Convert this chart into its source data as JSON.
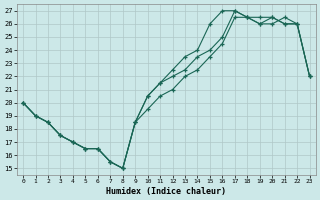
{
  "xlabel": "Humidex (Indice chaleur)",
  "bg_color": "#cce8e8",
  "grid_color": "#b0c8c8",
  "line_color": "#1a6655",
  "xlim": [
    -0.5,
    23.5
  ],
  "ylim": [
    14.5,
    27.5
  ],
  "xticks": [
    0,
    1,
    2,
    3,
    4,
    5,
    6,
    7,
    8,
    9,
    10,
    11,
    12,
    13,
    14,
    15,
    16,
    17,
    18,
    19,
    20,
    21,
    22,
    23
  ],
  "yticks": [
    15,
    16,
    17,
    18,
    19,
    20,
    21,
    22,
    23,
    24,
    25,
    26,
    27
  ],
  "line1_x": [
    0,
    1,
    2,
    3,
    4,
    5,
    6,
    7,
    8,
    9,
    10,
    11,
    12,
    13,
    14,
    15,
    16,
    17,
    18,
    19,
    20,
    21,
    22,
    23
  ],
  "line1_y": [
    20,
    19,
    18.5,
    17.5,
    17,
    16.5,
    16.5,
    15.5,
    15.0,
    18.5,
    20.5,
    21.5,
    22.0,
    22.5,
    23.5,
    24.0,
    25.0,
    27.0,
    26.5,
    26.0,
    26.0,
    26.5,
    26.0,
    22.0
  ],
  "line2_x": [
    0,
    1,
    2,
    3,
    4,
    5,
    6,
    7,
    8,
    9,
    10,
    11,
    12,
    13,
    14,
    15,
    16,
    17,
    18,
    19,
    20,
    21,
    22,
    23
  ],
  "line2_y": [
    20,
    19,
    18.5,
    17.5,
    17,
    16.5,
    16.5,
    15.5,
    15.0,
    18.5,
    20.5,
    21.5,
    22.5,
    23.5,
    24.0,
    26.0,
    27.0,
    27.0,
    26.5,
    26.5,
    26.5,
    26.0,
    26.0,
    22.0
  ],
  "line3_x": [
    0,
    1,
    2,
    3,
    4,
    5,
    6,
    7,
    8,
    9,
    10,
    11,
    12,
    13,
    14,
    15,
    16,
    17,
    18,
    19,
    20,
    21,
    22,
    23
  ],
  "line3_y": [
    20,
    19,
    18.5,
    17.5,
    17.0,
    16.5,
    16.5,
    15.5,
    15.0,
    18.5,
    19.5,
    20.5,
    21.0,
    22.0,
    22.5,
    23.5,
    24.5,
    26.5,
    26.5,
    26.0,
    26.5,
    26.0,
    26.0,
    22.0
  ]
}
